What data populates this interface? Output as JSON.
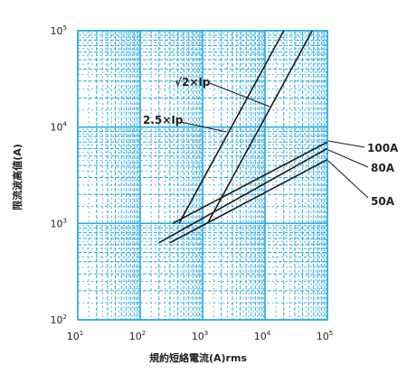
{
  "chart_data": {
    "type": "line",
    "title": "",
    "xlabel": "規約短絡電流(A)rms",
    "ylabel": "限流波高値(A)",
    "xscale": "log",
    "yscale": "log",
    "xlim": [
      10,
      100000
    ],
    "ylim": [
      100,
      100000
    ],
    "grid": true,
    "grid_color": "#29a9e0",
    "line_color": "#1a1a1a",
    "x_ticks": [
      {
        "base": "10",
        "exp": "1"
      },
      {
        "base": "10",
        "exp": "2"
      },
      {
        "base": "10",
        "exp": "3"
      },
      {
        "base": "10",
        "exp": "4"
      },
      {
        "base": "10",
        "exp": "5"
      }
    ],
    "y_ticks": [
      {
        "base": "10",
        "exp": "2"
      },
      {
        "base": "10",
        "exp": "3"
      },
      {
        "base": "10",
        "exp": "4"
      },
      {
        "base": "10",
        "exp": "5"
      }
    ],
    "series": [
      {
        "name": "√2×Ip",
        "points": [
          [
            1200,
            1000
          ],
          [
            57000,
            100000
          ]
        ]
      },
      {
        "name": "2.5×Ip",
        "points": [
          [
            420,
            1000
          ],
          [
            20000,
            100000
          ]
        ]
      },
      {
        "name": "100A",
        "points": [
          [
            330,
            1000
          ],
          [
            100000,
            7000
          ]
        ]
      },
      {
        "name": "80A",
        "points": [
          [
            200,
            630
          ],
          [
            100000,
            6000
          ]
        ]
      },
      {
        "name": "50A",
        "points": [
          [
            300,
            630
          ],
          [
            100000,
            4600
          ]
        ]
      }
    ]
  }
}
